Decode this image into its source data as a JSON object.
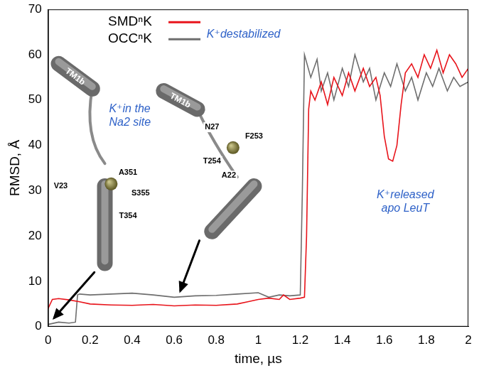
{
  "chart_data": {
    "type": "line",
    "x_label": "time, µs",
    "y_label": "RMSD, Å",
    "xlim": [
      0,
      2
    ],
    "xticks": [
      0,
      0.2,
      0.4,
      0.6,
      0.8,
      1,
      1.2,
      1.4,
      1.6,
      1.8,
      2
    ],
    "ylim": [
      0,
      70
    ],
    "yticks": [
      0,
      10,
      20,
      30,
      40,
      50,
      60,
      70
    ],
    "grid": false,
    "legend": "upper left",
    "series": [
      {
        "name": "SMDⁿK",
        "color": "#e8141b",
        "x": [
          0,
          0.02,
          0.05,
          0.1,
          0.15,
          0.2,
          0.3,
          0.4,
          0.5,
          0.6,
          0.7,
          0.8,
          0.9,
          0.95,
          1.0,
          1.05,
          1.1,
          1.12,
          1.15,
          1.2,
          1.22,
          1.23,
          1.24,
          1.25,
          1.27,
          1.3,
          1.33,
          1.36,
          1.4,
          1.43,
          1.46,
          1.5,
          1.53,
          1.56,
          1.58,
          1.6,
          1.62,
          1.64,
          1.66,
          1.68,
          1.7,
          1.73,
          1.76,
          1.79,
          1.82,
          1.85,
          1.88,
          1.91,
          1.94,
          1.97,
          2
        ],
        "values": [
          4,
          6,
          6.2,
          5.9,
          5.5,
          5,
          4.8,
          4.7,
          4.9,
          4.6,
          4.8,
          4.7,
          5,
          5.5,
          6,
          6.3,
          6,
          7,
          6,
          6.3,
          6.5,
          20,
          48,
          52,
          50,
          54,
          49,
          55,
          51,
          56,
          52,
          57,
          53,
          55,
          51,
          42,
          37,
          36.5,
          40,
          49,
          56,
          58,
          55,
          60,
          57,
          61,
          56,
          60,
          58,
          55,
          57
        ]
      },
      {
        "name": "OCCⁿK",
        "color": "#6e6e6e",
        "x": [
          0,
          0.05,
          0.1,
          0.13,
          0.14,
          0.15,
          0.2,
          0.3,
          0.4,
          0.5,
          0.6,
          0.7,
          0.8,
          0.9,
          1.0,
          1.05,
          1.1,
          1.15,
          1.2,
          1.21,
          1.22,
          1.25,
          1.28,
          1.3,
          1.33,
          1.36,
          1.4,
          1.43,
          1.46,
          1.5,
          1.53,
          1.56,
          1.6,
          1.63,
          1.66,
          1.7,
          1.73,
          1.76,
          1.8,
          1.83,
          1.86,
          1.9,
          1.93,
          1.96,
          2
        ],
        "values": [
          0.5,
          1,
          0.8,
          1,
          7,
          7.2,
          7,
          7.2,
          7.4,
          7,
          6.5,
          6.8,
          6.9,
          7.2,
          7.5,
          6.5,
          7,
          6.8,
          7,
          30,
          60,
          55,
          59,
          52,
          56,
          50,
          57,
          53,
          60,
          54,
          57,
          50,
          56,
          53,
          58,
          52,
          55,
          50,
          56,
          53,
          57,
          52,
          55,
          53,
          54
        ]
      }
    ],
    "annotations": [
      {
        "text": [
          "K⁺in the",
          "Na2 site"
        ]
      },
      {
        "text": [
          "K⁺destabilized"
        ]
      },
      {
        "text": [
          "K⁺released",
          "apo LeuT"
        ]
      }
    ],
    "insets": [
      {
        "helix": "TM1b",
        "residues": [
          "V23",
          "A351",
          "S355",
          "T354"
        ]
      },
      {
        "helix": "TM1b",
        "residues": [
          "N27",
          "F253",
          "T254",
          "A22"
        ]
      }
    ]
  }
}
